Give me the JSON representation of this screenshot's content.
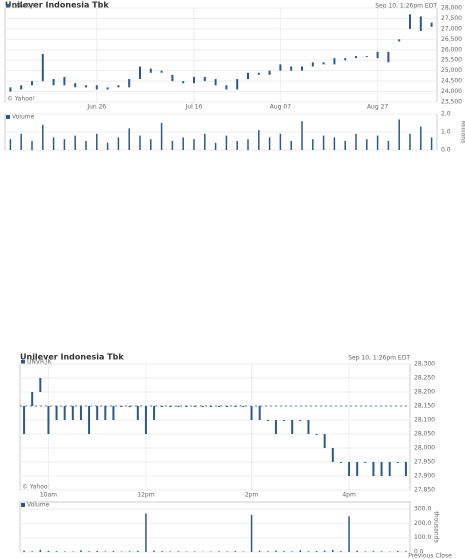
{
  "chart_data": [
    {
      "type": "candlestick",
      "title": "Unilever Indonesia Tbk",
      "series_name": "UNVR.JK",
      "timestamp": "Sep 10, 1:26pm EDT",
      "credit": "© Yahoo!",
      "color": "#2b5a8a",
      "categories": [
        null,
        null,
        null,
        null,
        null,
        null,
        null,
        null,
        "Jun 26",
        null,
        null,
        null,
        null,
        null,
        null,
        null,
        null,
        "Jul 16",
        null,
        null,
        null,
        null,
        null,
        null,
        null,
        "Aug 07",
        null,
        null,
        null,
        null,
        null,
        null,
        null,
        null,
        "Aug 27",
        null,
        null,
        null,
        null,
        null
      ],
      "open": [
        24200,
        24100,
        24300,
        24500,
        24600,
        24300,
        24400,
        24200,
        24300,
        24100,
        24300,
        24200,
        24600,
        25100,
        24900,
        24800,
        24500,
        24400,
        24700,
        24600,
        24300,
        24100,
        24600,
        24900,
        24800,
        25000,
        25200,
        25000,
        25200,
        25400,
        25300,
        25600,
        25600,
        25700,
        25600,
        25900,
        26500,
        27000,
        27600,
        27100
      ],
      "close": [
        24000,
        24300,
        24500,
        25800,
        24300,
        24700,
        24200,
        24300,
        24100,
        24200,
        24200,
        24600,
        25200,
        24900,
        25000,
        24500,
        24400,
        24700,
        24500,
        24300,
        24100,
        24600,
        24900,
        24800,
        25000,
        25300,
        25000,
        25200,
        25400,
        25300,
        25600,
        25500,
        25700,
        25700,
        25900,
        25400,
        26400,
        27700,
        26900,
        27300
      ],
      "ylim": [
        23500,
        28000
      ],
      "yticks": [
        {
          "value": 23500,
          "label": "23,500"
        },
        {
          "value": 24000,
          "label": "24,000"
        },
        {
          "value": 24500,
          "label": "24,500"
        },
        {
          "value": 25000,
          "label": "25,000"
        },
        {
          "value": 25500,
          "label": "25,500"
        },
        {
          "value": 26000,
          "label": "26,000"
        },
        {
          "value": 26500,
          "label": "26,500"
        },
        {
          "value": 27000,
          "label": "27,000"
        },
        {
          "value": 27500,
          "label": "27,500"
        },
        {
          "value": 28000,
          "label": "28,000"
        }
      ],
      "volume_name": "Volume",
      "volume_unit": "Millions",
      "volume": [
        0.6,
        0.9,
        0.5,
        1.4,
        0.7,
        0.6,
        0.8,
        0.5,
        0.9,
        0.4,
        0.7,
        1.2,
        0.8,
        0.6,
        1.5,
        0.5,
        0.7,
        0.6,
        0.9,
        0.4,
        0.8,
        0.5,
        0.6,
        1.1,
        0.7,
        0.9,
        0.5,
        1.6,
        0.6,
        0.8,
        0.7,
        0.5,
        0.9,
        0.6,
        0.8,
        0.5,
        1.7,
        0.9,
        1.3,
        0.7
      ],
      "vlim": [
        0,
        2
      ],
      "vticks": [
        {
          "value": 0,
          "label": "0.0"
        },
        {
          "value": 1,
          "label": "1.0"
        },
        {
          "value": 2,
          "label": "2.0"
        }
      ]
    },
    {
      "type": "candlestick",
      "title": "Unilever Indonesia Tbk",
      "series_name": "UNVR.JK",
      "timestamp": "Sep 10, 1:26pm EDT",
      "credit": "© Yahoo!",
      "color": "#2b5a8a",
      "previous_close": 28150,
      "previous_close_label": "Previous Close",
      "categories": [
        null,
        null,
        null,
        "10am",
        null,
        null,
        null,
        null,
        null,
        null,
        null,
        null,
        null,
        null,
        null,
        "12pm",
        null,
        null,
        null,
        null,
        null,
        null,
        null,
        null,
        null,
        null,
        null,
        null,
        "2pm",
        null,
        null,
        null,
        null,
        null,
        null,
        null,
        null,
        null,
        null,
        null,
        "4pm",
        null,
        null,
        null,
        null,
        null,
        null,
        null
      ],
      "open": [
        28150,
        28150,
        28200,
        28150,
        28100,
        28150,
        28150,
        28100,
        28150,
        28150,
        28100,
        28150,
        28150,
        28150,
        28100,
        28150,
        28100,
        28150,
        28150,
        28150,
        28150,
        28150,
        28150,
        28150,
        28150,
        28150,
        28150,
        28150,
        28150,
        28100,
        28100,
        28100,
        28100,
        28100,
        28100,
        28100,
        28050,
        28050,
        28000,
        27950,
        27950,
        27900,
        27950,
        27950,
        27900,
        27950,
        27950,
        27950
      ],
      "close": [
        28050,
        28200,
        28250,
        28050,
        28150,
        28100,
        28100,
        28150,
        28050,
        28100,
        28150,
        28100,
        28150,
        28150,
        28150,
        28050,
        28150,
        28150,
        28150,
        28150,
        28150,
        28150,
        28150,
        28150,
        28150,
        28150,
        28150,
        28150,
        28100,
        28150,
        28100,
        28050,
        28100,
        28050,
        28100,
        28050,
        28050,
        28000,
        27950,
        27950,
        27900,
        27950,
        27950,
        27900,
        27950,
        27900,
        27950,
        27900
      ],
      "ylim": [
        27850,
        28300
      ],
      "yticks": [
        {
          "value": 27850,
          "label": "27,850"
        },
        {
          "value": 27900,
          "label": "27,900"
        },
        {
          "value": 27950,
          "label": "27,950"
        },
        {
          "value": 28000,
          "label": "28,000"
        },
        {
          "value": 28050,
          "label": "28,050"
        },
        {
          "value": 28100,
          "label": "28,100"
        },
        {
          "value": 28150,
          "label": "28,150"
        },
        {
          "value": 28200,
          "label": "28,200"
        },
        {
          "value": 28250,
          "label": "28,250"
        },
        {
          "value": 28300,
          "label": "28,300"
        }
      ],
      "volume_name": "Volume",
      "volume_unit": "thousands",
      "volume": [
        10,
        5,
        15,
        8,
        6,
        4,
        3,
        12,
        5,
        7,
        4,
        6,
        3,
        5,
        8,
        270,
        10,
        6,
        4,
        5,
        3,
        4,
        2,
        3,
        5,
        4,
        6,
        3,
        260,
        8,
        5,
        10,
        6,
        4,
        12,
        5,
        7,
        9,
        15,
        6,
        250,
        8,
        4,
        6,
        5,
        3,
        7,
        5
      ],
      "vlim": [
        0,
        350
      ],
      "vticks": [
        {
          "value": 0,
          "label": "0.0"
        },
        {
          "value": 100,
          "label": "100.0"
        },
        {
          "value": 200,
          "label": "200.0"
        },
        {
          "value": 300,
          "label": "300.0"
        }
      ]
    }
  ]
}
